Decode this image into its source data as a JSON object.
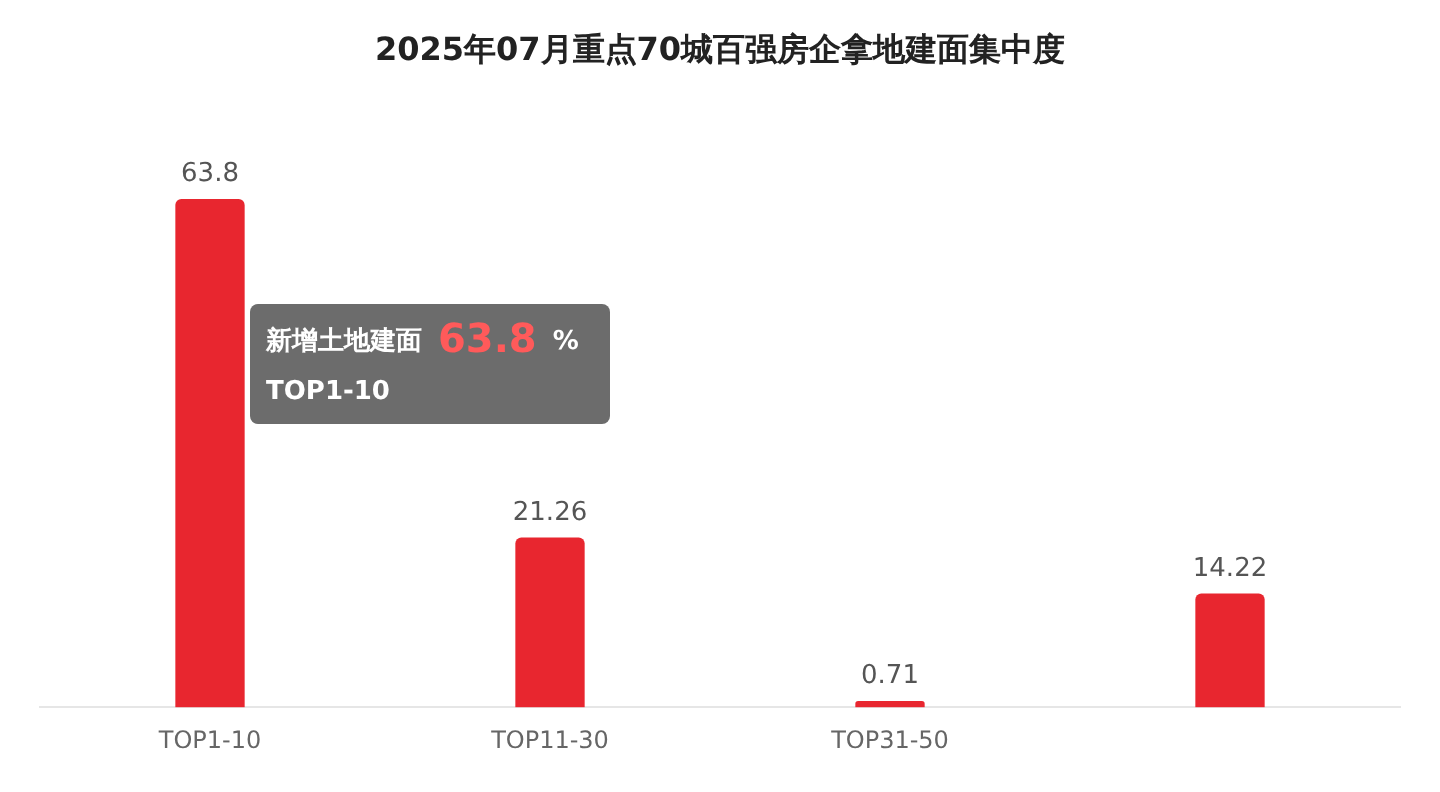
{
  "chart_data": {
    "type": "bar",
    "title": "2025年07月重点70城百强房企拿地建面集中度",
    "categories": [
      "TOP1-10",
      "TOP11-30",
      "TOP31-50",
      null
    ],
    "series": [
      {
        "color": "#e8262f",
        "values": [
          63.8,
          21.26,
          0.71,
          14.22
        ]
      }
    ],
    "annotations": [
      "新增土地建面",
      "63.8",
      "%",
      "TOP1-10"
    ],
    "data_labels": true,
    "grid": false,
    "legend": false
  }
}
